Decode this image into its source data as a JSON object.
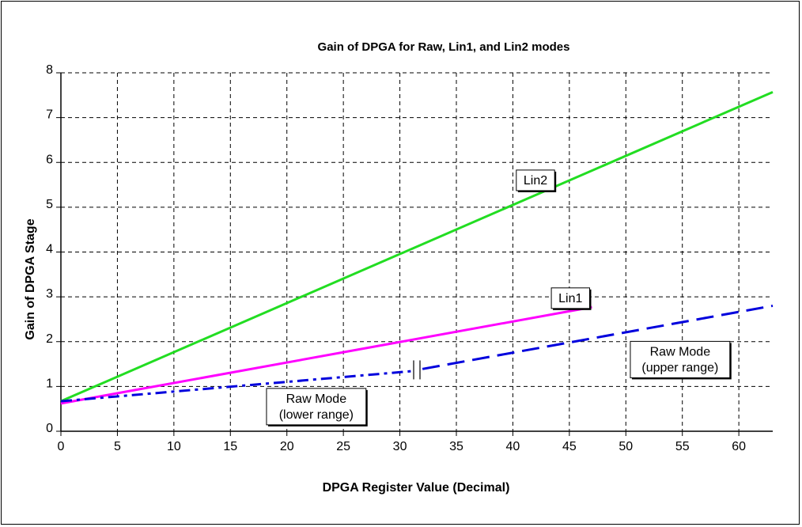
{
  "chart_data": {
    "type": "line",
    "title": "Gain of DPGA for Raw, Lin1, and Lin2 modes",
    "xlabel": "DPGA Register Value (Decimal)",
    "ylabel": "Gain of DPGA Stage",
    "xlim": [
      0,
      63
    ],
    "ylim": [
      0,
      8
    ],
    "xticks": [
      0,
      5,
      10,
      15,
      20,
      25,
      30,
      35,
      40,
      45,
      50,
      55,
      60
    ],
    "yticks": [
      0,
      1,
      2,
      3,
      4,
      5,
      6,
      7,
      8
    ],
    "grid": true,
    "series": [
      {
        "name": "Lin2",
        "color": "#22dd22",
        "style": "solid",
        "x": [
          0,
          63
        ],
        "y": [
          0.67,
          7.57
        ]
      },
      {
        "name": "Lin1",
        "color": "#ff00ff",
        "style": "solid",
        "x": [
          0,
          47
        ],
        "y": [
          0.62,
          2.77
        ]
      },
      {
        "name": "Raw Mode (lower range)",
        "color": "#0000dd",
        "style": "dashdot",
        "x": [
          0,
          31
        ],
        "y": [
          0.67,
          1.34
        ]
      },
      {
        "name": "Raw Mode (upper range)",
        "color": "#0000dd",
        "style": "dash",
        "x": [
          32,
          63
        ],
        "y": [
          1.39,
          2.8
        ]
      }
    ],
    "annotations": [
      {
        "id": "lin2",
        "lines": [
          "Lin2"
        ],
        "x": 42,
        "y": 5.6
      },
      {
        "id": "lin1",
        "lines": [
          "Lin1"
        ],
        "x": 45.1,
        "y": 2.97
      },
      {
        "id": "raw-lower",
        "lines": [
          "Raw Mode",
          "(lower range)"
        ],
        "x": 22.6,
        "y": 0.55
      },
      {
        "id": "raw-upper",
        "lines": [
          "Raw Mode",
          "(upper range)"
        ],
        "x": 54.8,
        "y": 1.6
      }
    ]
  }
}
